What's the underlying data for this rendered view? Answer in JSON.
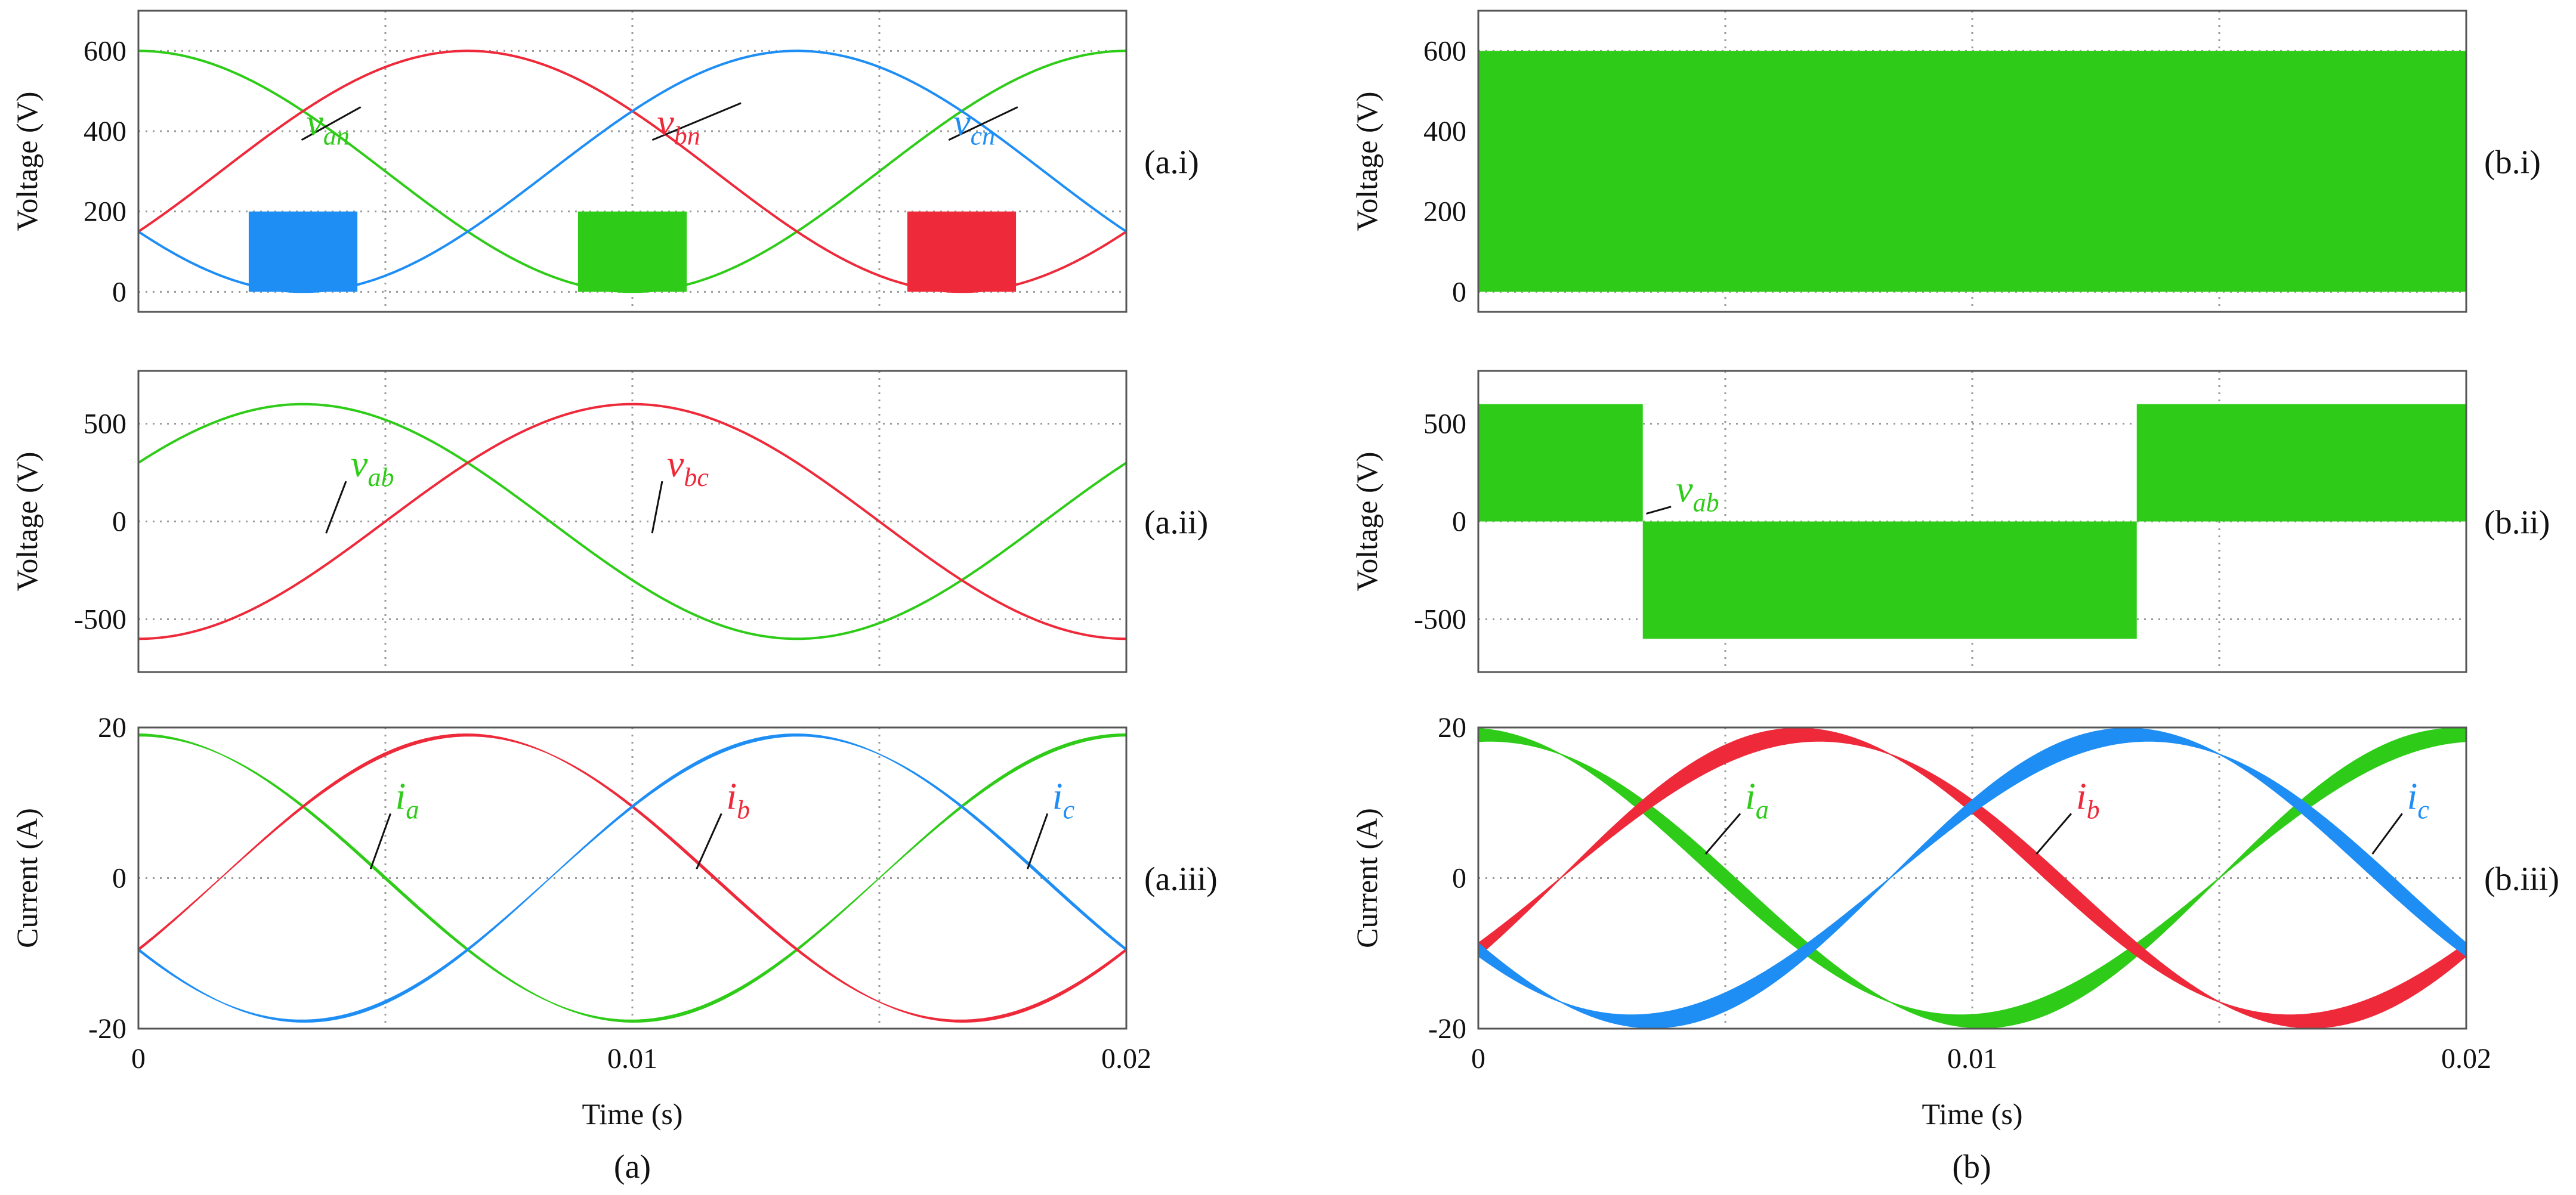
{
  "figure": {
    "captions": [
      "(a)",
      "(b)"
    ]
  },
  "colors": {
    "phase_a": "#2ecc18",
    "phase_b": "#ee2a3a",
    "phase_c": "#1e8ef5",
    "grid": "#9a9a9a",
    "frame": "#555555"
  },
  "chart_data": [
    {
      "id": "a_i",
      "panel_label": "(a.i)",
      "type": "line",
      "ylabel": "Voltage (V)",
      "xlabel": "",
      "xlim": [
        0,
        0.02
      ],
      "ylim": [
        -50,
        700
      ],
      "yticks": [
        0,
        200,
        400,
        600
      ],
      "ytick_labels": [
        "0",
        "200",
        "400",
        "600"
      ],
      "xticks": [
        0,
        0.005,
        0.01,
        0.015,
        0.02
      ],
      "xtick_labels": [],
      "grid": true,
      "legend": "none",
      "series": [
        {
          "name": "v_an",
          "color": "#2ecc18",
          "kind": "phase_voltage",
          "phase_deg": 0
        },
        {
          "name": "v_bn",
          "color": "#ee2a3a",
          "kind": "phase_voltage",
          "phase_deg": -120
        },
        {
          "name": "v_cn",
          "color": "#1e8ef5",
          "kind": "phase_voltage",
          "phase_deg": 120
        }
      ],
      "peak": 600,
      "pwm_level": 200,
      "annotations": [
        {
          "base": "v",
          "sub": "an",
          "color": "#2ecc18",
          "x": 0.0034,
          "y": 390,
          "ax": 0.0045,
          "ay": 460
        },
        {
          "base": "v",
          "sub": "bn",
          "color": "#ee2a3a",
          "x": 0.0105,
          "y": 390,
          "ax": 0.0122,
          "ay": 470
        },
        {
          "base": "v",
          "sub": "cn",
          "color": "#1e8ef5",
          "x": 0.0165,
          "y": 390,
          "ax": 0.0178,
          "ay": 460
        }
      ]
    },
    {
      "id": "a_ii",
      "panel_label": "(a.ii)",
      "type": "line",
      "ylabel": "Voltage (V)",
      "xlabel": "",
      "xlim": [
        0,
        0.02
      ],
      "ylim": [
        -770,
        770
      ],
      "yticks": [
        -500,
        0,
        500
      ],
      "ytick_labels": [
        "-500",
        "0",
        "500"
      ],
      "xticks": [
        0,
        0.005,
        0.01,
        0.015,
        0.02
      ],
      "xtick_labels": [],
      "grid": true,
      "legend": "none",
      "series": [
        {
          "name": "v_ab",
          "color": "#2ecc18",
          "kind": "line_voltage",
          "phase_deg": 30
        },
        {
          "name": "v_bc",
          "color": "#ee2a3a",
          "kind": "line_voltage",
          "phase_deg": -90
        }
      ],
      "peak": 600,
      "annotations": [
        {
          "base": "v",
          "sub": "ab",
          "color": "#2ecc18",
          "x": 0.0043,
          "y": 230,
          "ax": 0.0038,
          "ay": -60
        },
        {
          "base": "v",
          "sub": "bc",
          "color": "#ee2a3a",
          "x": 0.0107,
          "y": 230,
          "ax": 0.0104,
          "ay": -60
        }
      ]
    },
    {
      "id": "a_iii",
      "panel_label": "(a.iii)",
      "type": "line",
      "ylabel": "Current (A)",
      "xlabel": "Time (s)",
      "xlim": [
        0,
        0.02
      ],
      "ylim": [
        -20,
        20
      ],
      "yticks": [
        -20,
        0,
        20
      ],
      "ytick_labels": [
        "-20",
        "0",
        "20"
      ],
      "xticks": [
        0,
        0.005,
        0.01,
        0.015,
        0.02
      ],
      "xtick_labels": [
        "0",
        "",
        "0.01",
        "",
        "0.02"
      ],
      "grid": true,
      "legend": "none",
      "series": [
        {
          "name": "i_a",
          "color": "#2ecc18",
          "kind": "current",
          "phase_deg": 90
        },
        {
          "name": "i_b",
          "color": "#ee2a3a",
          "kind": "current",
          "phase_deg": -30
        },
        {
          "name": "i_c",
          "color": "#1e8ef5",
          "kind": "current",
          "phase_deg": 210
        }
      ],
      "peak": 19,
      "annotations": [
        {
          "base": "i",
          "sub": "a",
          "color": "#2ecc18",
          "x": 0.0052,
          "y": 9.2,
          "ax": 0.0047,
          "ay": 1.2
        },
        {
          "base": "i",
          "sub": "b",
          "color": "#ee2a3a",
          "x": 0.0119,
          "y": 9.2,
          "ax": 0.0113,
          "ay": 1.2
        },
        {
          "base": "i",
          "sub": "c",
          "color": "#1e8ef5",
          "x": 0.0185,
          "y": 9.2,
          "ax": 0.018,
          "ay": 1.2
        }
      ]
    },
    {
      "id": "b_i",
      "panel_label": "(b.i)",
      "type": "area",
      "ylabel": "Voltage (V)",
      "xlabel": "",
      "xlim": [
        0,
        0.02
      ],
      "ylim": [
        -50,
        700
      ],
      "yticks": [
        0,
        200,
        400,
        600
      ],
      "ytick_labels": [
        "0",
        "200",
        "400",
        "600"
      ],
      "xticks": [
        0,
        0.005,
        0.01,
        0.015,
        0.02
      ],
      "xtick_labels": [],
      "grid": true,
      "legend": "none",
      "series": [
        {
          "name": "v_an",
          "color": "#2ecc18",
          "kind": "pwm_band",
          "low": 0,
          "high": 600
        }
      ],
      "annotations": []
    },
    {
      "id": "b_ii",
      "panel_label": "(b.ii)",
      "type": "area",
      "ylabel": "Voltage (V)",
      "xlabel": "",
      "xlim": [
        0,
        0.02
      ],
      "ylim": [
        -770,
        770
      ],
      "yticks": [
        -500,
        0,
        500
      ],
      "ytick_labels": [
        "-500",
        "0",
        "500"
      ],
      "xticks": [
        0,
        0.005,
        0.01,
        0.015,
        0.02
      ],
      "xtick_labels": [],
      "grid": true,
      "legend": "none",
      "series": [
        {
          "name": "v_ab",
          "color": "#2ecc18",
          "kind": "pwm_segments",
          "segments": [
            {
              "x0": 0,
              "x1": 0.00333,
              "low": 0,
              "high": 600
            },
            {
              "x0": 0.00333,
              "x1": 0.01333,
              "low": -600,
              "high": 0
            },
            {
              "x0": 0.01333,
              "x1": 0.02,
              "low": 0,
              "high": 600
            }
          ]
        }
      ],
      "annotations": [
        {
          "base": "v",
          "sub": "ab",
          "color": "#2ecc18",
          "x": 0.004,
          "y": 100,
          "ax": 0.0034,
          "ay": 40
        }
      ]
    },
    {
      "id": "b_iii",
      "panel_label": "(b.iii)",
      "type": "line",
      "ylabel": "Current (A)",
      "xlabel": "Time (s)",
      "xlim": [
        0,
        0.02
      ],
      "ylim": [
        -20,
        20
      ],
      "yticks": [
        -20,
        0,
        20
      ],
      "ytick_labels": [
        "-20",
        "0",
        "20"
      ],
      "xticks": [
        0,
        0.005,
        0.01,
        0.015,
        0.02
      ],
      "xtick_labels": [
        "0",
        "",
        "0.01",
        "",
        "0.02"
      ],
      "grid": true,
      "legend": "none",
      "series": [
        {
          "name": "i_a",
          "color": "#2ecc18",
          "kind": "current_ripple",
          "phase_deg": 90
        },
        {
          "name": "i_b",
          "color": "#ee2a3a",
          "kind": "current_ripple",
          "phase_deg": -30
        },
        {
          "name": "i_c",
          "color": "#1e8ef5",
          "kind": "current_ripple",
          "phase_deg": 210
        }
      ],
      "peak": 19,
      "ripple_max": 2.4,
      "annotations": [
        {
          "base": "i",
          "sub": "a",
          "color": "#2ecc18",
          "x": 0.0054,
          "y": 9.2,
          "ax": 0.0046,
          "ay": 3.2
        },
        {
          "base": "i",
          "sub": "b",
          "color": "#ee2a3a",
          "x": 0.0121,
          "y": 9.2,
          "ax": 0.0113,
          "ay": 3.2
        },
        {
          "base": "i",
          "sub": "c",
          "color": "#1e8ef5",
          "x": 0.0188,
          "y": 9.2,
          "ax": 0.0181,
          "ay": 3.2
        }
      ]
    }
  ]
}
